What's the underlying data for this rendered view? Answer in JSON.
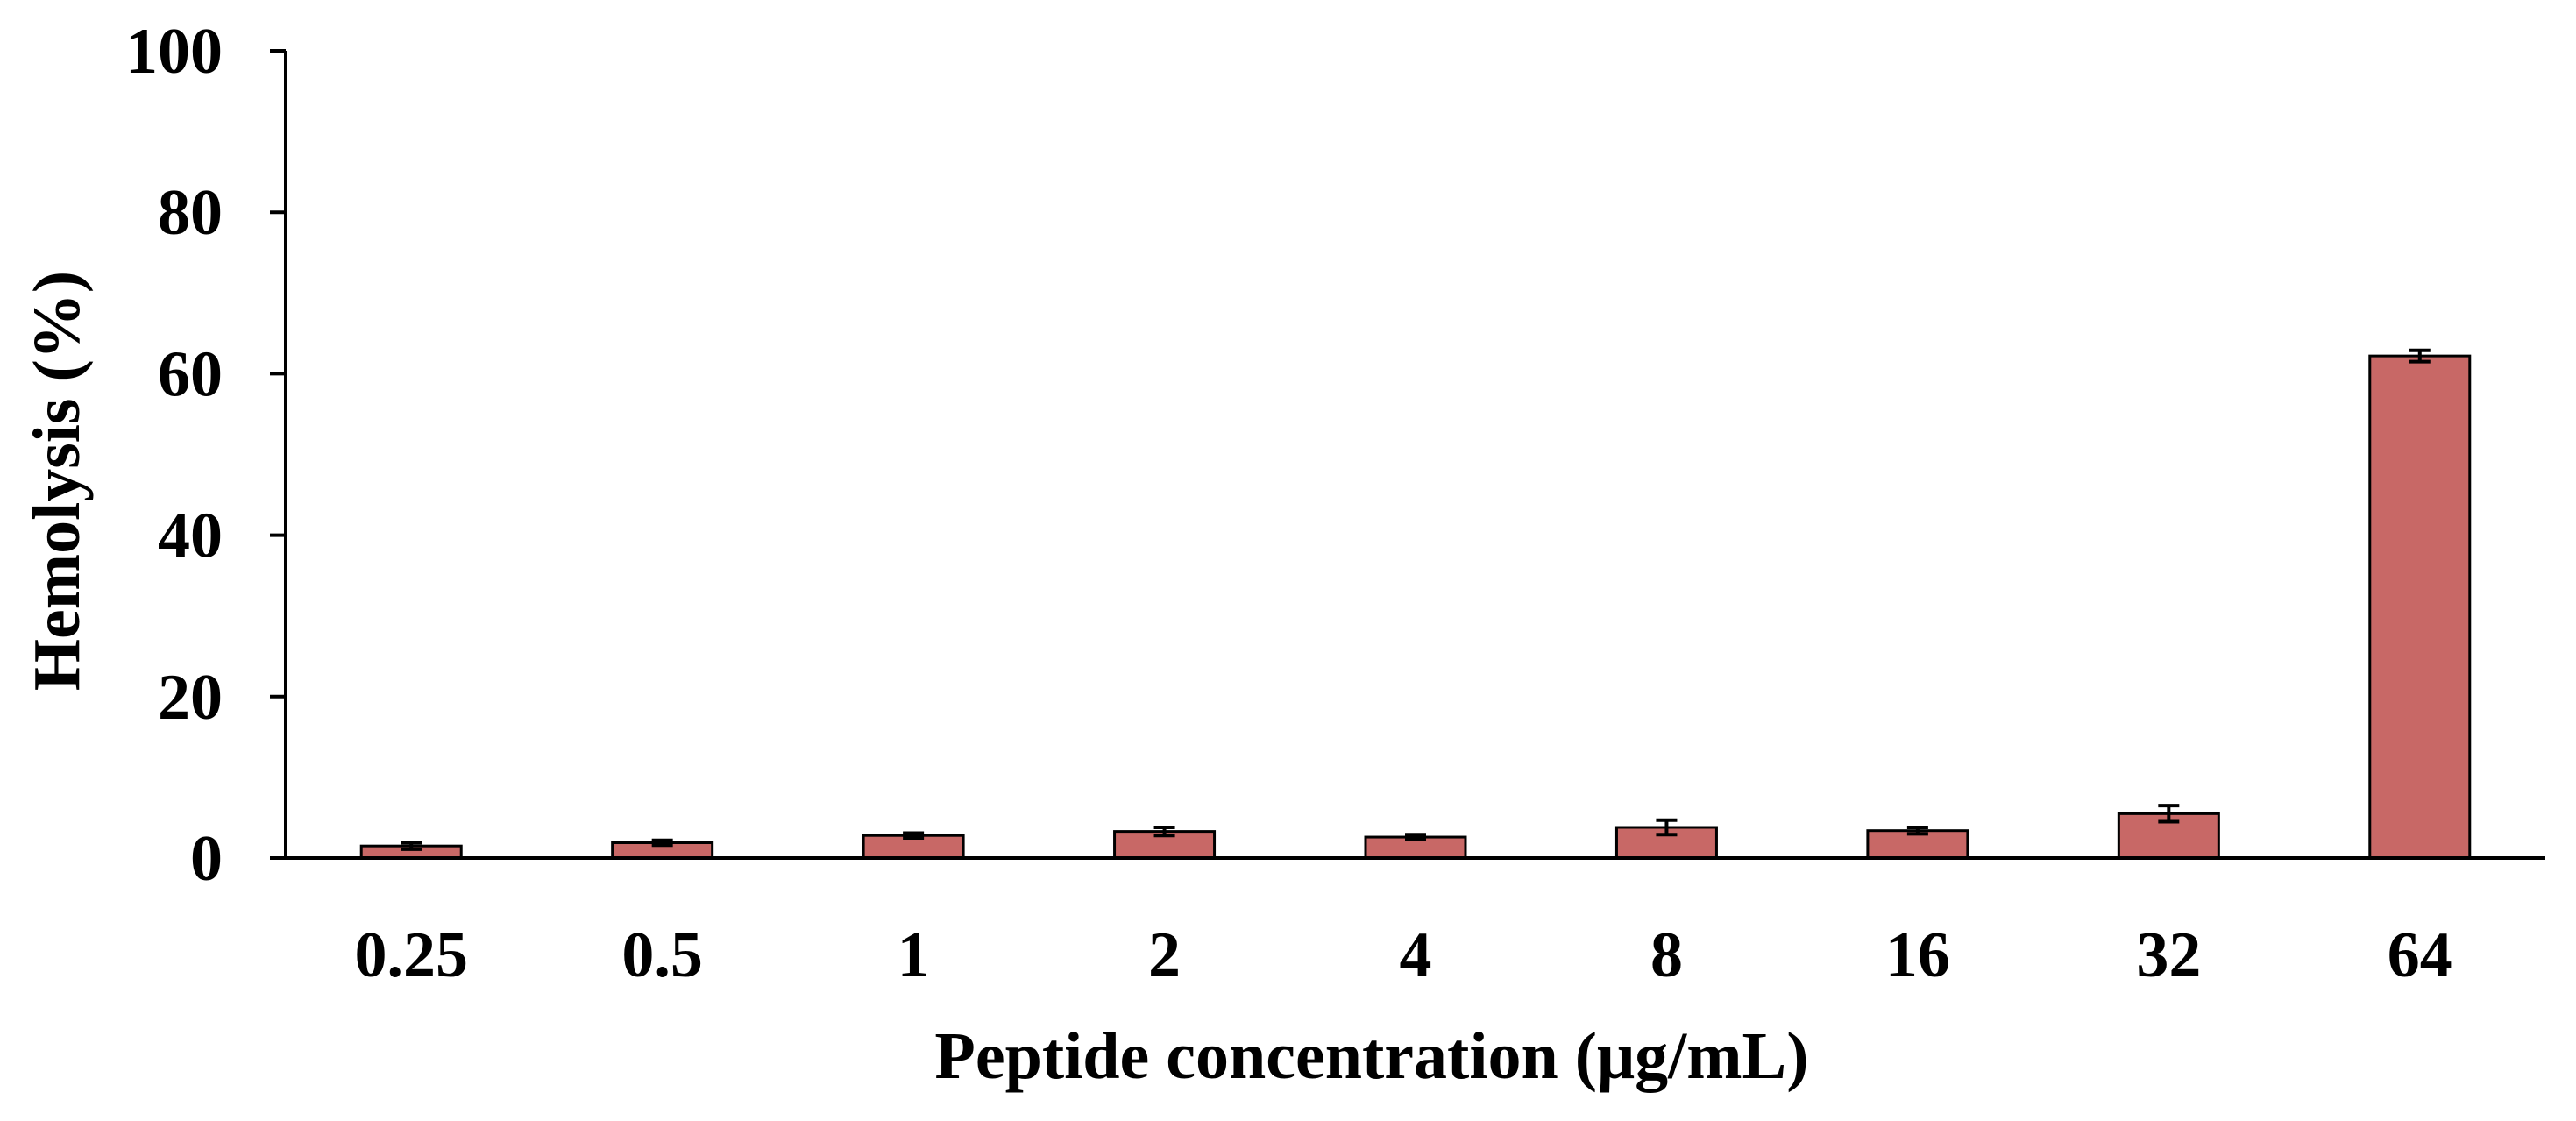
{
  "colors": {
    "bar_fill": "#c86866",
    "bar_stroke": "#000000",
    "axis": "#000000"
  },
  "chart_data": {
    "type": "bar",
    "title": "",
    "xlabel": "Peptide concentration (μg/mL)",
    "ylabel": "Hemolysis (%)",
    "categories": [
      "0.25",
      "0.5",
      "1",
      "2",
      "4",
      "8",
      "16",
      "32",
      "64"
    ],
    "values": [
      1.5,
      1.9,
      2.8,
      3.3,
      2.6,
      3.8,
      3.4,
      5.5,
      62.2
    ],
    "errors": [
      0.4,
      0.3,
      0.3,
      0.5,
      0.3,
      0.9,
      0.4,
      1.0,
      0.7
    ],
    "ylim": [
      0,
      100
    ],
    "yticks": [
      "0",
      "20",
      "40",
      "60",
      "80",
      "100"
    ],
    "grid": false,
    "legend": "none"
  }
}
